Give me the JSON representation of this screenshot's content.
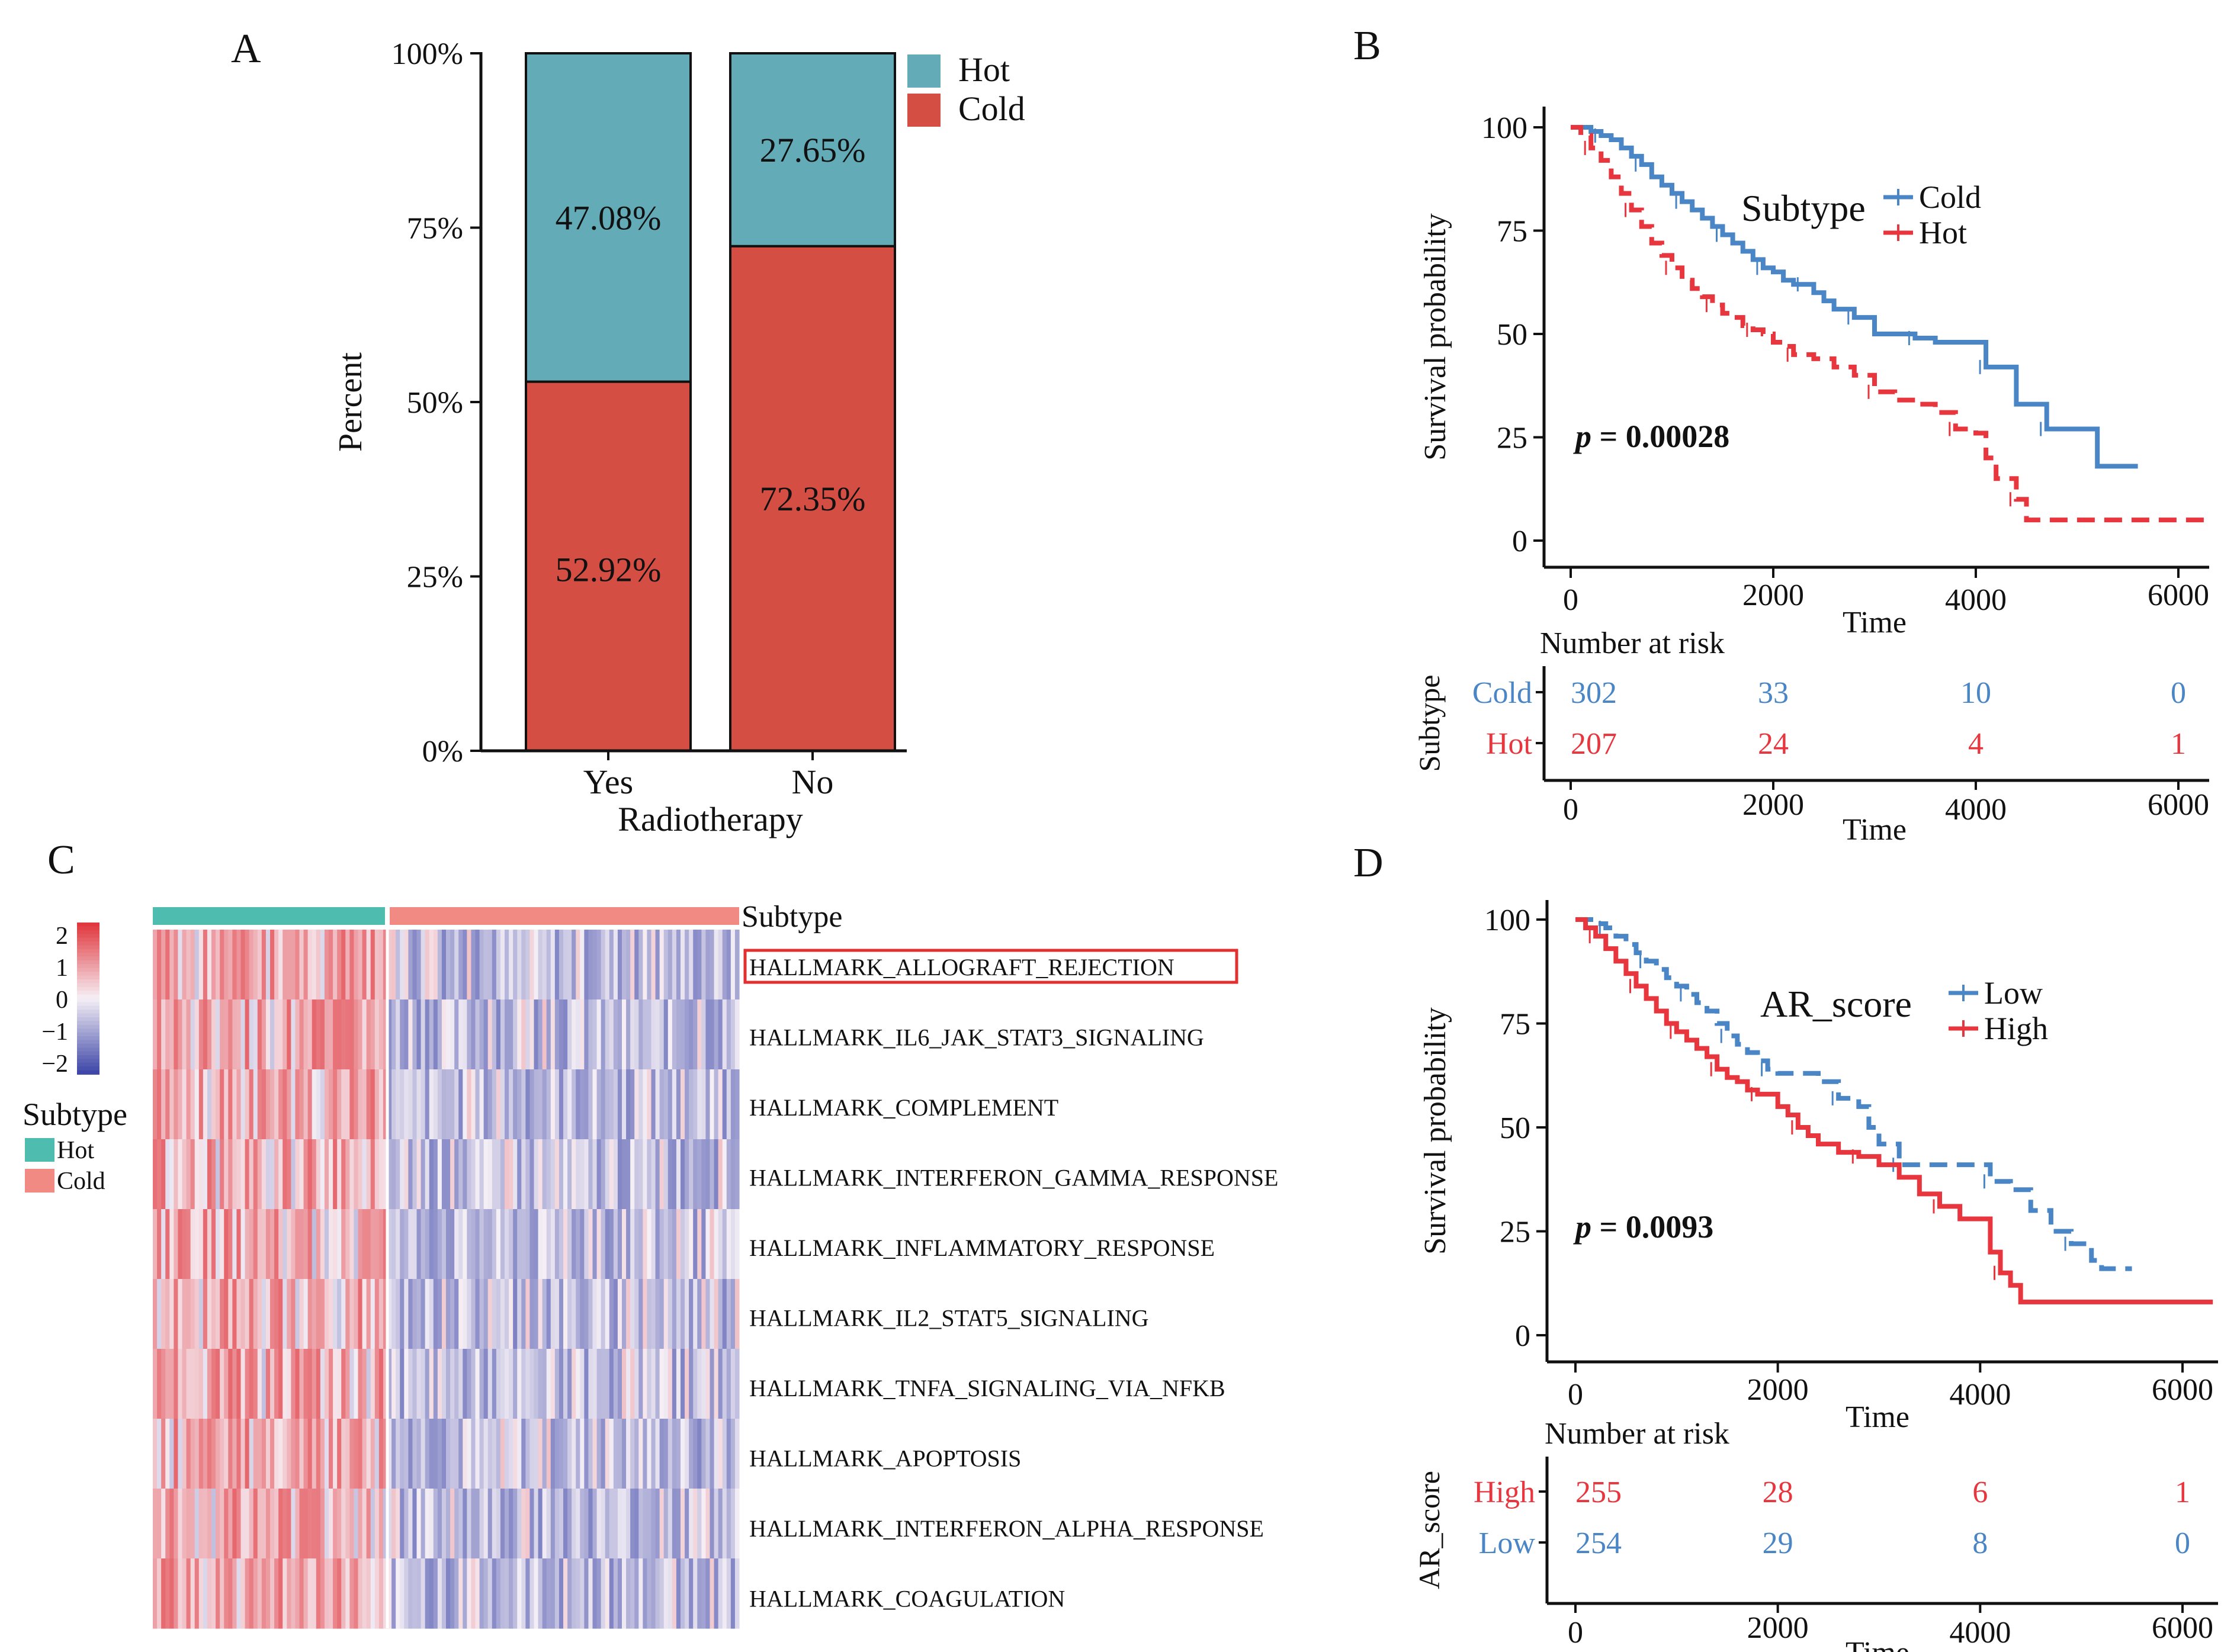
{
  "panels": {
    "a": "A",
    "b": "B",
    "c": "C",
    "d": "D"
  },
  "colors": {
    "hot": "#63abb6",
    "cold": "#d44e43",
    "km_blue": "#4a86c5",
    "km_red": "#e8363e",
    "heat_high": "#e0383e",
    "heat_low": "#3f48a8",
    "anno_hot": "#4fbcb0",
    "anno_cold": "#f08a82",
    "box": "#e23030"
  },
  "chart_data": [
    {
      "type": "bar",
      "id": "A",
      "stacked": true,
      "categories": [
        "Yes",
        "No"
      ],
      "series": [
        {
          "name": "Hot",
          "values": [
            47.08,
            27.65
          ],
          "labels": [
            "47.08%",
            "27.65%"
          ]
        },
        {
          "name": "Cold",
          "values": [
            52.92,
            72.35
          ],
          "labels": [
            "52.92%",
            "72.35%"
          ]
        }
      ],
      "legend": [
        "Hot",
        "Cold"
      ],
      "xlabel": "Radiotherapy",
      "ylabel": "Percent",
      "ylim": [
        0,
        100
      ],
      "yticks": [
        "0%",
        "25%",
        "50%",
        "75%",
        "100%"
      ]
    },
    {
      "type": "line",
      "id": "B",
      "legend_title": "Subtype",
      "legend": [
        "Cold",
        "Hot"
      ],
      "xlabel": "Time",
      "ylabel": "Survival probability",
      "xlim": [
        0,
        6000
      ],
      "ylim": [
        0,
        100
      ],
      "xticks": [
        "0",
        "2000",
        "4000",
        "6000"
      ],
      "yticks": [
        "0",
        "25",
        "50",
        "75",
        "100"
      ],
      "pvalue": "p = 0.00028",
      "series": [
        {
          "name": "Cold",
          "dashed": false,
          "x": [
            0,
            200,
            300,
            400,
            500,
            600,
            700,
            800,
            900,
            1000,
            1100,
            1200,
            1300,
            1400,
            1500,
            1600,
            1700,
            1800,
            1900,
            2000,
            2100,
            2200,
            2300,
            2400,
            2500,
            2600,
            2800,
            2900,
            3000,
            3200,
            3400,
            3600,
            3800,
            4000,
            4100,
            4300,
            4400,
            4600,
            4700,
            5000,
            5200,
            5600
          ],
          "y": [
            100,
            99,
            98,
            97,
            95,
            93,
            91,
            88,
            86,
            84,
            82,
            80,
            78,
            76,
            74,
            72,
            70,
            68,
            66,
            65,
            63,
            62,
            62,
            60,
            58,
            56,
            54,
            54,
            50,
            50,
            49,
            48,
            48,
            48,
            42,
            42,
            33,
            33,
            27,
            27,
            18,
            18
          ]
        },
        {
          "name": "Hot",
          "dashed": true,
          "x": [
            0,
            100,
            200,
            300,
            400,
            500,
            600,
            700,
            800,
            900,
            1000,
            1100,
            1200,
            1300,
            1400,
            1500,
            1600,
            1700,
            1800,
            1900,
            2000,
            2100,
            2200,
            2400,
            2600,
            2800,
            3000,
            3200,
            3400,
            3600,
            3800,
            4000,
            4100,
            4200,
            4400,
            4500,
            6300
          ],
          "y": [
            100,
            98,
            95,
            92,
            88,
            84,
            80,
            76,
            72,
            69,
            66,
            63,
            61,
            59,
            57,
            55,
            54,
            52,
            51,
            50,
            48,
            47,
            45,
            44,
            42,
            40,
            36,
            34,
            33,
            31,
            27,
            26,
            20,
            15,
            10,
            5,
            5
          ]
        }
      ],
      "risk_table": {
        "title": "Number at risk",
        "ylabel": "Subtype",
        "times": [
          "0",
          "2000",
          "4000",
          "6000"
        ],
        "rows": [
          {
            "name": "Cold",
            "counts": [
              "302",
              "33",
              "10",
              "0"
            ]
          },
          {
            "name": "Hot",
            "counts": [
              "207",
              "24",
              "4",
              "1"
            ]
          }
        ],
        "xlabel": "Time"
      }
    },
    {
      "type": "heatmap",
      "id": "C",
      "annotation_title": "Subtype",
      "annotation_legend": [
        "Hot",
        "Cold"
      ],
      "colorbar_ticks": [
        "2",
        "1",
        "0",
        "−1",
        "−2"
      ],
      "colorbar_range": [
        -2,
        2
      ],
      "groups": [
        {
          "name": "Hot",
          "share": 0.4
        },
        {
          "name": "Cold",
          "share": 0.6
        }
      ],
      "rows": [
        "HALLMARK_ALLOGRAFT_REJECTION",
        "HALLMARK_IL6_JAK_STAT3_SIGNALING",
        "HALLMARK_COMPLEMENT",
        "HALLMARK_INTERFERON_GAMMA_RESPONSE",
        "HALLMARK_INFLAMMATORY_RESPONSE",
        "HALLMARK_IL2_STAT5_SIGNALING",
        "HALLMARK_TNFA_SIGNALING_VIA_NFKB",
        "HALLMARK_APOPTOSIS",
        "HALLMARK_INTERFERON_ALPHA_RESPONSE",
        "HALLMARK_COAGULATION"
      ],
      "highlighted_row": 0
    },
    {
      "type": "line",
      "id": "D",
      "legend_title": "AR_score",
      "legend": [
        "Low",
        "High"
      ],
      "xlabel": "Time",
      "ylabel": "Survival probability",
      "xlim": [
        0,
        6000
      ],
      "ylim": [
        0,
        100
      ],
      "xticks": [
        "0",
        "2000",
        "4000",
        "6000"
      ],
      "yticks": [
        "0",
        "25",
        "50",
        "75",
        "100"
      ],
      "pvalue": "p = 0.0093",
      "series": [
        {
          "name": "Low",
          "dashed": true,
          "x": [
            0,
            200,
            300,
            400,
            500,
            600,
            700,
            800,
            900,
            1000,
            1100,
            1200,
            1300,
            1400,
            1500,
            1600,
            1700,
            1800,
            1900,
            2000,
            2200,
            2400,
            2600,
            2800,
            2900,
            3000,
            3200,
            3500,
            3800,
            4000,
            4100,
            4300,
            4500,
            4700,
            4900,
            5100,
            5200,
            5500
          ],
          "y": [
            100,
            99,
            98,
            96,
            94,
            92,
            90,
            88,
            86,
            84,
            82,
            80,
            78,
            75,
            72,
            70,
            68,
            66,
            64,
            63,
            63,
            61,
            57,
            55,
            50,
            46,
            41,
            41,
            41,
            41,
            37,
            35,
            30,
            25,
            22,
            18,
            16,
            16
          ]
        },
        {
          "name": "High",
          "dashed": false,
          "x": [
            0,
            100,
            200,
            300,
            400,
            500,
            600,
            700,
            800,
            900,
            1000,
            1100,
            1200,
            1300,
            1400,
            1500,
            1600,
            1700,
            1800,
            1900,
            2000,
            2100,
            2200,
            2300,
            2400,
            2600,
            2800,
            3000,
            3200,
            3400,
            3600,
            3800,
            4000,
            4100,
            4200,
            4300,
            4400,
            6300
          ],
          "y": [
            100,
            98,
            96,
            93,
            90,
            87,
            84,
            81,
            78,
            75,
            73,
            71,
            69,
            67,
            64,
            62,
            61,
            59,
            58,
            58,
            55,
            53,
            50,
            48,
            46,
            44,
            43,
            41,
            38,
            34,
            31,
            28,
            28,
            20,
            15,
            12,
            8,
            8
          ]
        }
      ],
      "risk_table": {
        "title": "Number at risk",
        "ylabel": "AR_score",
        "times": [
          "0",
          "2000",
          "4000",
          "6000"
        ],
        "rows": [
          {
            "name": "High",
            "counts": [
              "255",
              "28",
              "6",
              "1"
            ]
          },
          {
            "name": "Low",
            "counts": [
              "254",
              "29",
              "8",
              "0"
            ]
          }
        ],
        "xlabel": "Time"
      }
    }
  ]
}
